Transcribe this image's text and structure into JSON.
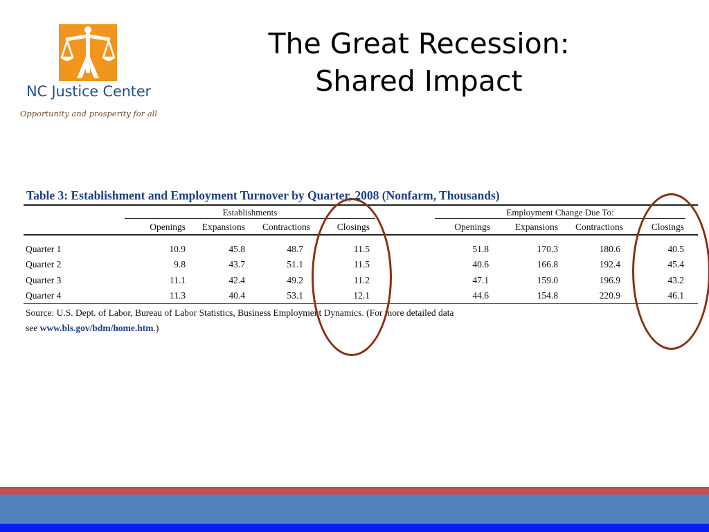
{
  "logo": {
    "org_name": "NC Justice Center",
    "tagline": "Opportunity and prosperity for all",
    "colors": {
      "mark_background": "#f0961e",
      "org_name": "#1f4f8e"
    }
  },
  "slide": {
    "title_line1": "The Great Recession:",
    "title_line2": "Shared Impact"
  },
  "table": {
    "caption": "Table 3: Establishment and Employment Turnover by Quarter, 2008 (Nonfarm, Thousands)",
    "groups": {
      "establishments": "Establishments",
      "employment": "Employment Change Due To:"
    },
    "columns": {
      "establishments": [
        "Openings",
        "Expansions",
        "Contractions",
        "Closings"
      ],
      "employment": [
        "Openings",
        "Expansions",
        "Contractions",
        "Closings"
      ]
    },
    "rows": [
      {
        "label": "Quarter 1",
        "establishments": [
          "10.9",
          "45.8",
          "48.7",
          "11.5"
        ],
        "employment": [
          "51.8",
          "170.3",
          "180.6",
          "40.5"
        ]
      },
      {
        "label": "Quarter 2",
        "establishments": [
          "9.8",
          "43.7",
          "51.1",
          "11.5"
        ],
        "employment": [
          "40.6",
          "166.8",
          "192.4",
          "45.4"
        ]
      },
      {
        "label": "Quarter 3",
        "establishments": [
          "11.1",
          "42.4",
          "49.2",
          "11.2"
        ],
        "employment": [
          "47.1",
          "159.0",
          "196.9",
          "43.2"
        ]
      },
      {
        "label": "Quarter 4",
        "establishments": [
          "11.3",
          "40.4",
          "53.1",
          "12.1"
        ],
        "employment": [
          "44.6",
          "154.8",
          "220.9",
          "46.1"
        ]
      }
    ],
    "source_line1": "Source: U.S. Dept. of Labor, Bureau of Labor Statistics, Business Employment Dynamics. (For more detailed data",
    "source_line2_prefix": "see ",
    "source_link": "www.bls.gov/bdm/home.htm",
    "source_line2_suffix": ".)"
  },
  "annotations": {
    "highlight_color": "#8a2e14",
    "highlighted_columns": [
      "Closings",
      "Closings"
    ]
  },
  "footer": {
    "colors": {
      "red": "#c0504d",
      "blue": "#4f81bd",
      "navy": "#0a1ef0"
    }
  }
}
